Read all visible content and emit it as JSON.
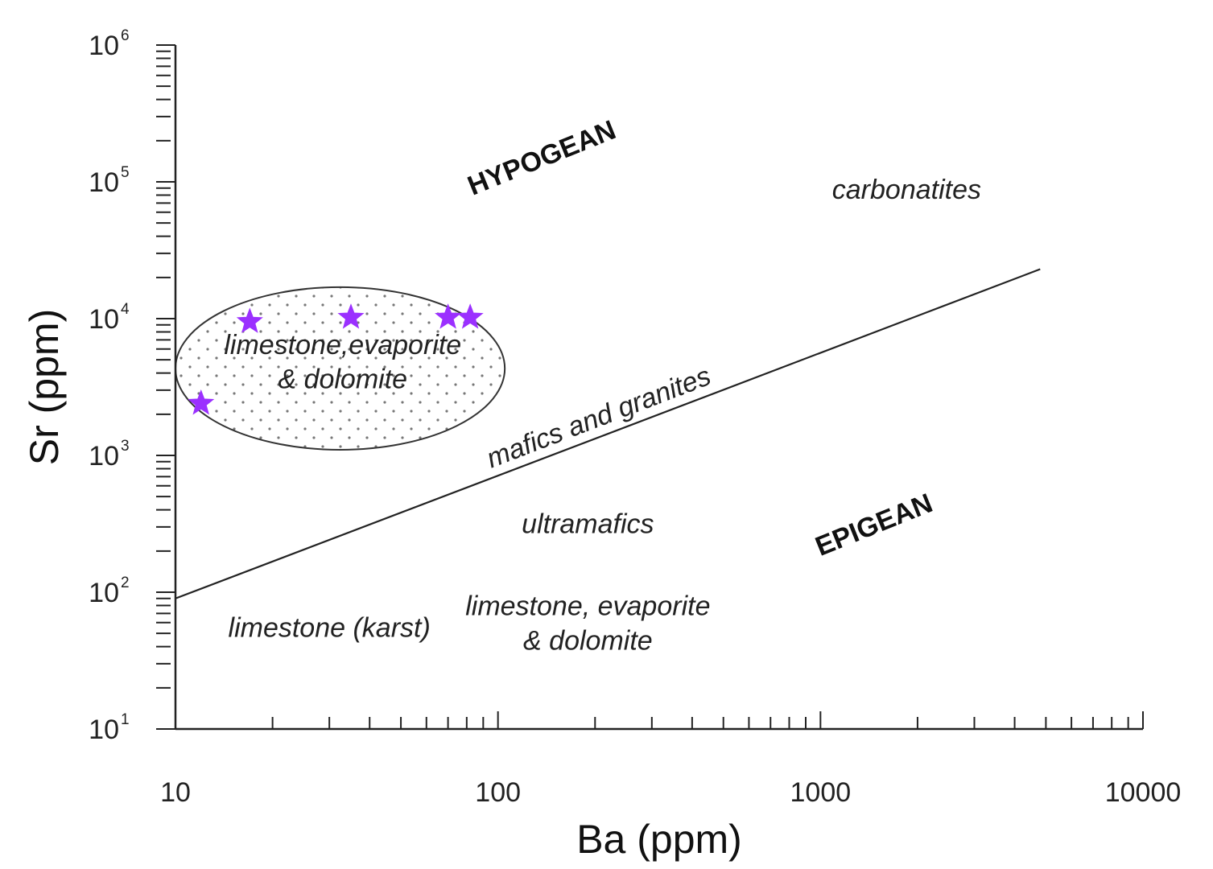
{
  "chart_data": {
    "type": "scatter",
    "xlabel": "Ba (ppm)",
    "ylabel": "Sr (ppm)",
    "x_scale": "log",
    "y_scale": "log",
    "xlim": [
      10,
      10000
    ],
    "ylim": [
      10,
      1000000
    ],
    "x_ticks": [
      {
        "value": 10,
        "label": "10"
      },
      {
        "value": 100,
        "label": "100"
      },
      {
        "value": 1000,
        "label": "1000"
      },
      {
        "value": 10000,
        "label": "10000"
      }
    ],
    "y_ticks": [
      {
        "value": 10,
        "base": "10",
        "exp": "1"
      },
      {
        "value": 100,
        "base": "10",
        "exp": "2"
      },
      {
        "value": 1000,
        "base": "10",
        "exp": "3"
      },
      {
        "value": 10000,
        "base": "10",
        "exp": "4"
      },
      {
        "value": 100000,
        "base": "10",
        "exp": "5"
      },
      {
        "value": 1000000,
        "base": "10",
        "exp": "6"
      }
    ],
    "grid": false,
    "series": [
      {
        "marker": "star",
        "color": "#9b30ff",
        "points": [
          {
            "x": 12,
            "y": 2400
          },
          {
            "x": 17,
            "y": 9500
          },
          {
            "x": 35,
            "y": 10200
          },
          {
            "x": 70,
            "y": 10200
          },
          {
            "x": 82,
            "y": 10200
          }
        ]
      }
    ],
    "boundary_line": {
      "points": [
        {
          "x": 10,
          "y": 90
        },
        {
          "x": 4800,
          "y": 23000
        }
      ],
      "color": "#222222"
    },
    "field_ellipse": {
      "center_x": 30,
      "center_y": 4500,
      "x_min": 10,
      "x_max": 105,
      "y_min": 1100,
      "y_max": 17000,
      "fill_pattern": "dots"
    },
    "annotations": [
      {
        "id": "hypogean",
        "text": "HYPOGEAN",
        "x": 140,
        "y": 130000,
        "style": "field",
        "rotate": -22
      },
      {
        "id": "epigean",
        "text": "EPIGEAN",
        "x": 1500,
        "y": 270,
        "style": "field",
        "rotate": -22
      },
      {
        "id": "carbonatites",
        "text": "carbonatites",
        "x": 1850,
        "y": 75000,
        "style": "region",
        "rotate": 0
      },
      {
        "id": "mafics-granites",
        "text": "mafics and granites",
        "x": 210,
        "y": 1650,
        "style": "region",
        "rotate": -21
      },
      {
        "id": "ultramafics",
        "text": "ultramafics",
        "x": 190,
        "y": 270,
        "style": "region",
        "rotate": 0
      },
      {
        "id": "ellipse-line-1",
        "text": "limestone,evaporite",
        "x": 33,
        "y": 5500,
        "style": "region",
        "rotate": 0
      },
      {
        "id": "ellipse-line-2",
        "text": "& dolomite",
        "x": 33,
        "y": 3100,
        "style": "region",
        "rotate": 0
      },
      {
        "id": "epigean-carb-1",
        "text": "limestone, evaporite",
        "x": 190,
        "y": 68,
        "style": "region",
        "rotate": 0
      },
      {
        "id": "epigean-carb-2",
        "text": "& dolomite",
        "x": 190,
        "y": 38,
        "style": "region",
        "rotate": 0
      },
      {
        "id": "karst",
        "text": "limestone (karst)",
        "x": 30,
        "y": 47,
        "style": "region",
        "rotate": 0
      }
    ]
  }
}
